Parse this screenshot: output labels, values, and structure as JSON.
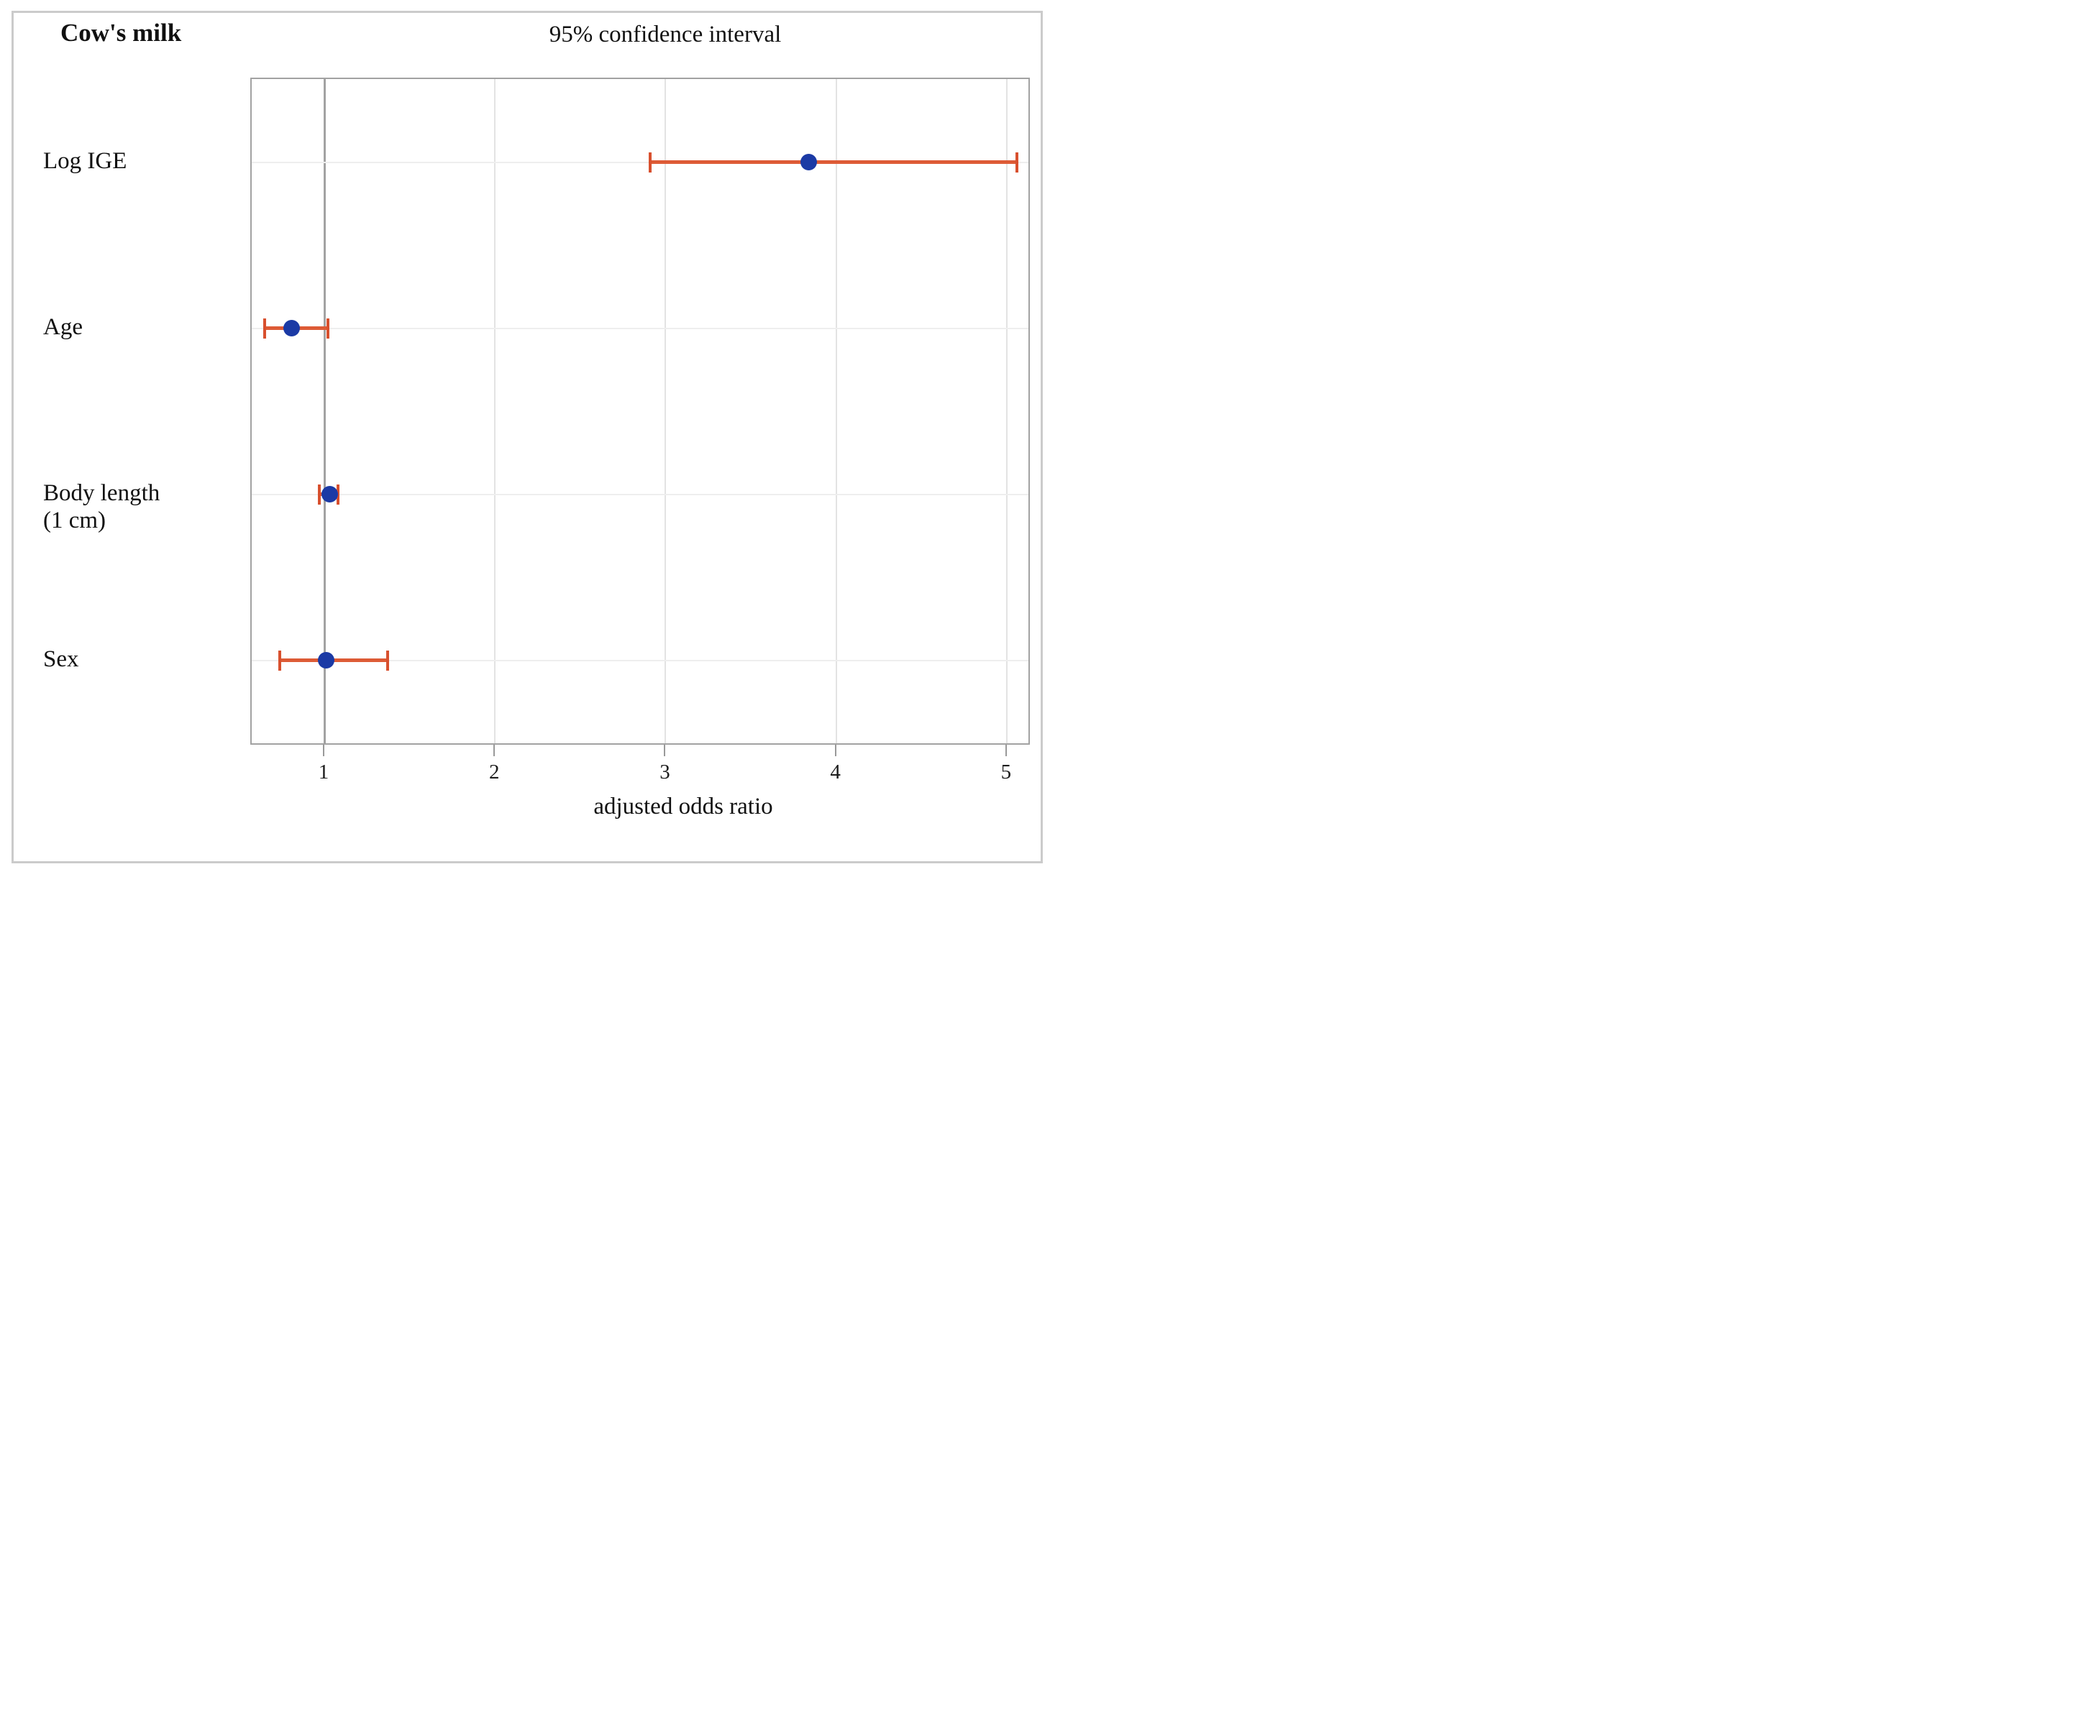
{
  "header": {
    "title": "Cow's milk",
    "subtitle": "95% confidence interval"
  },
  "chart_data": {
    "type": "scatter",
    "variant": "forest-plot",
    "title": "Cow's milk",
    "subtitle": "95% confidence interval",
    "xlabel": "adjusted odds ratio",
    "xlim": [
      0.574,
      5.127
    ],
    "x_ticks": [
      "1",
      "2",
      "3",
      "4",
      "5"
    ],
    "x_tick_values": [
      1,
      2,
      3,
      4,
      5
    ],
    "grid": {
      "vertical": true,
      "horizontal_row_lines": true,
      "major_line_at": 1
    },
    "legend": "none",
    "rows": [
      {
        "label_lines": [
          "Log IGE"
        ],
        "odds_ratio": 3.84,
        "ci_low": 2.91,
        "ci_high": 5.06
      },
      {
        "label_lines": [
          "Age"
        ],
        "odds_ratio": 0.81,
        "ci_low": 0.65,
        "ci_high": 1.02
      },
      {
        "label_lines": [
          "Body length",
          "(1 cm)"
        ],
        "odds_ratio": 1.03,
        "ci_low": 0.97,
        "ci_high": 1.08
      },
      {
        "label_lines": [
          "Sex"
        ],
        "odds_ratio": 1.01,
        "ci_low": 0.74,
        "ci_high": 1.37
      }
    ],
    "colors": {
      "marker": "#1b3aa5",
      "error_bar": "#dd5b36",
      "error_bar_cap": "#d8502e",
      "plot_border": "#a2a2a2",
      "major_gridline": "#a2a2a2",
      "minor_gridline": "#e3e3e3",
      "row_gridline": "#eeeeee",
      "outer_border": "#cbcbcb",
      "tick_mark": "#999999",
      "text": "#111111"
    }
  }
}
